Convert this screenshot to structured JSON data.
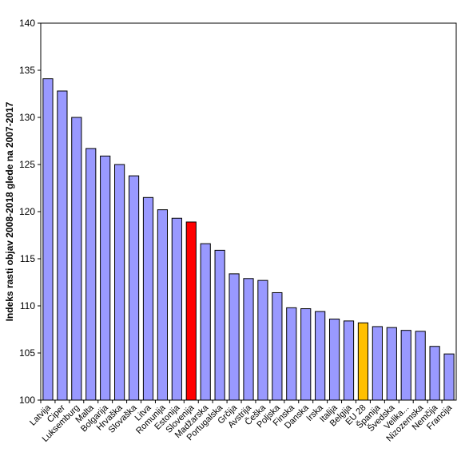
{
  "chart_data": {
    "type": "bar",
    "title": "",
    "xlabel": "",
    "ylabel": "Indeks rasti objav 2008-2018 glede na 2007-2017",
    "ylim": [
      100,
      140
    ],
    "yticks": [
      100,
      105,
      110,
      115,
      120,
      125,
      130,
      135,
      140
    ],
    "grid": false,
    "colors": {
      "default": "#9999ff",
      "highlight_slovenia": "#ff0000",
      "highlight_eu28": "#ffc000",
      "outline": "#000000"
    },
    "categories": [
      "Latvija",
      "Ciper",
      "Luksemburg",
      "Malta",
      "Bolgarija",
      "Hrvaška",
      "Slovaška",
      "Litva",
      "Romunija",
      "Estonija",
      "Slovenija",
      "Madžarska",
      "Portugalska",
      "Grčija",
      "Avstrija",
      "Češka",
      "Poljska",
      "Finska",
      "Danska",
      "Irska",
      "Italija",
      "Belgija",
      "EU 28",
      "Španija",
      "Švedska",
      "Velika...",
      "Nizozemska",
      "Nemčija",
      "Francija"
    ],
    "values": [
      134.1,
      132.8,
      130.0,
      126.7,
      125.9,
      125.0,
      123.8,
      121.5,
      120.2,
      119.3,
      118.9,
      116.6,
      115.9,
      113.4,
      112.9,
      112.7,
      111.4,
      109.8,
      109.7,
      109.4,
      108.6,
      108.4,
      108.2,
      107.8,
      107.7,
      107.4,
      107.3,
      105.7,
      104.9
    ],
    "highlight": {
      "Slovenija": "highlight_slovenia",
      "EU 28": "highlight_eu28"
    }
  }
}
